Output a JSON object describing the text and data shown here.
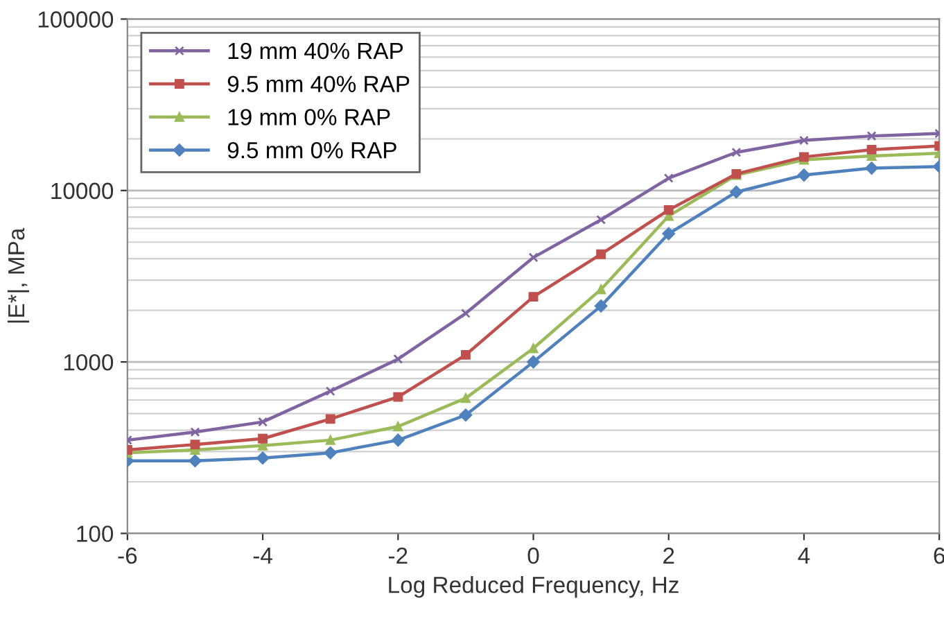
{
  "chart_data": {
    "type": "line",
    "xlabel": "Log Reduced Frequency, Hz",
    "ylabel": "|E*|, MPa",
    "log": "y",
    "grid": "y",
    "legend": "top left",
    "x": [
      -6,
      -5,
      -4,
      -3,
      -2,
      -1,
      0,
      1,
      2,
      3,
      4,
      5,
      6
    ],
    "xlim": [
      -6,
      6
    ],
    "xticks": [
      -6,
      -4,
      -2,
      0,
      2,
      4,
      6
    ],
    "ylim": [
      100,
      100000
    ],
    "yticks": [
      100,
      1000,
      10000,
      100000
    ],
    "series": [
      {
        "name": "19 mm 40% RAP",
        "color": "#8064a2",
        "marker": "cross",
        "values": [
          350,
          390,
          447,
          675,
          1040,
          1920,
          4070,
          6750,
          11800,
          16700,
          19600,
          20800,
          21500
        ]
      },
      {
        "name": "9.5 mm 40% RAP",
        "color": "#c0504d",
        "marker": "square",
        "values": [
          307,
          330,
          357,
          465,
          625,
          1100,
          2400,
          4250,
          7700,
          12500,
          15700,
          17300,
          18200
        ]
      },
      {
        "name": "19 mm 0% RAP",
        "color": "#9bbb59",
        "marker": "triangle",
        "values": [
          295,
          307,
          325,
          350,
          420,
          615,
          1200,
          2650,
          7100,
          12300,
          15100,
          15900,
          16500
        ]
      },
      {
        "name": "9.5 mm 0% RAP",
        "color": "#4f81bd",
        "marker": "diamond",
        "values": [
          265,
          265,
          275,
          295,
          350,
          490,
          1000,
          2120,
          5600,
          9800,
          12300,
          13500,
          13800
        ]
      }
    ]
  }
}
